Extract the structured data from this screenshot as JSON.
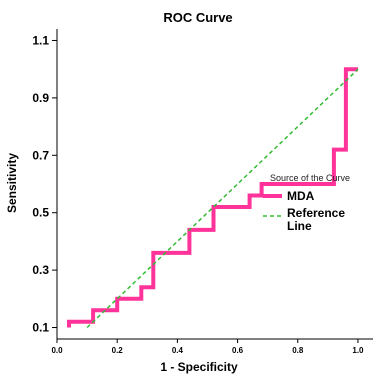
{
  "chart_data": {
    "type": "line",
    "title": "ROC Curve",
    "xlabel": "1 - Specificity",
    "ylabel": "Sensitivity",
    "xlim": [
      0.0,
      1.05
    ],
    "ylim": [
      0.06,
      1.14
    ],
    "x_ticks": [
      0.0,
      0.2,
      0.4,
      0.6,
      0.8,
      1.0
    ],
    "x_tick_labels": [
      "0.0",
      "0.2",
      "0.4",
      "0.6",
      "0.8",
      "1.0"
    ],
    "y_ticks": [
      0.1,
      0.3,
      0.5,
      0.7,
      0.9,
      1.1
    ],
    "y_tick_labels": [
      "0.1",
      "0.3",
      "0.5",
      "0.7",
      "0.9",
      "1.1"
    ],
    "grid": false,
    "legend": {
      "title": "Source of the Curve",
      "placement": "right-center",
      "entries": [
        "MDA",
        "Reference Line"
      ]
    },
    "series": [
      {
        "name": "MDA",
        "color": "#ff3399",
        "style": "solid-step",
        "x": [
          0.04,
          0.04,
          0.12,
          0.12,
          0.2,
          0.2,
          0.28,
          0.28,
          0.32,
          0.32,
          0.44,
          0.44,
          0.52,
          0.52,
          0.64,
          0.64,
          0.68,
          0.68,
          0.92,
          0.92,
          0.96,
          0.96,
          1.0
        ],
        "y": [
          0.1,
          0.12,
          0.12,
          0.16,
          0.16,
          0.2,
          0.2,
          0.24,
          0.24,
          0.36,
          0.36,
          0.44,
          0.44,
          0.52,
          0.52,
          0.56,
          0.56,
          0.6,
          0.6,
          0.72,
          0.72,
          1.0,
          1.0
        ]
      },
      {
        "name": "Reference Line",
        "color": "#33bb33",
        "style": "dashed",
        "x": [
          0.1,
          1.0
        ],
        "y": [
          0.1,
          1.0
        ]
      }
    ]
  }
}
